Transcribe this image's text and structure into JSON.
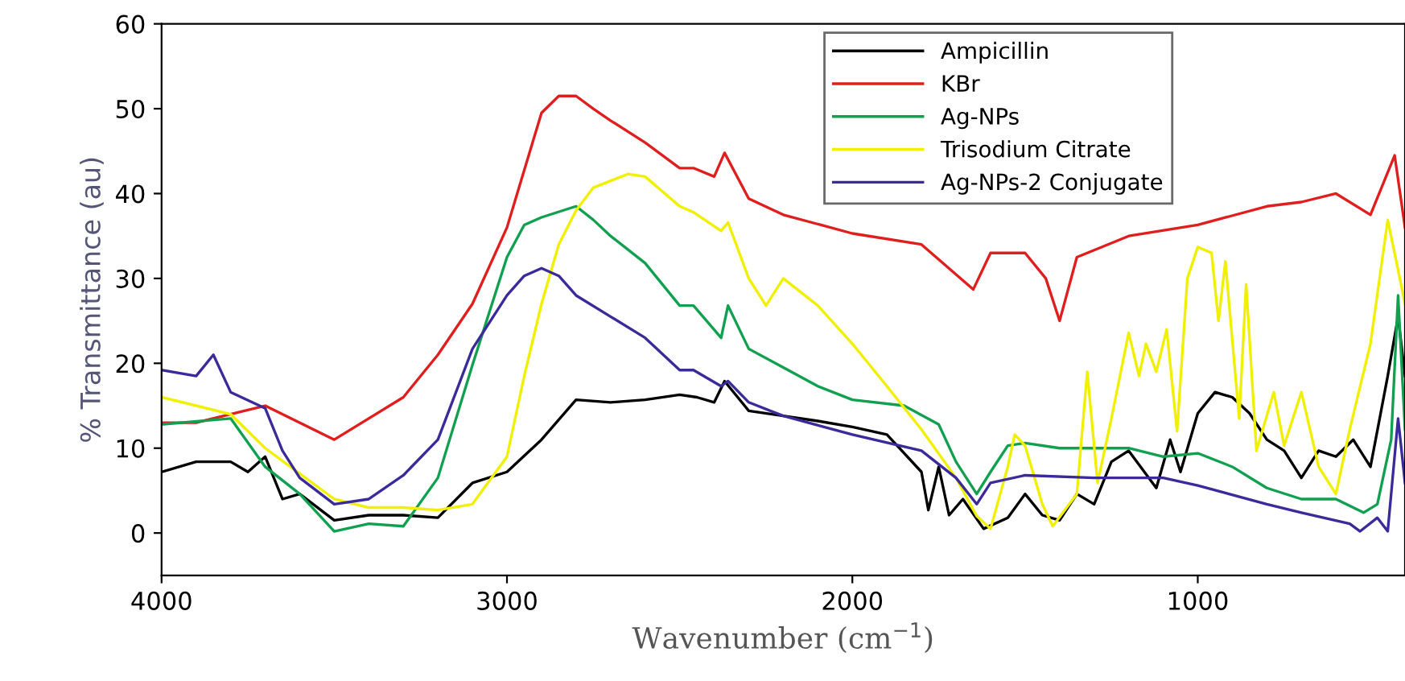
{
  "chart_data": {
    "type": "line",
    "xlabel": "Wavenumber (cm$^{−1}$)",
    "ylabel": "% Transmittance (au)",
    "xlim": [
      4000,
      400
    ],
    "ylim": [
      -5,
      60
    ],
    "xticks": [
      4000,
      3000,
      2000,
      1000
    ],
    "yticks": [
      0,
      10,
      20,
      30,
      40,
      50,
      60
    ],
    "grid": false,
    "legend": "top right",
    "marker": "none",
    "line_style": "solid",
    "series": [
      {
        "name": "Ampicillin",
        "color": "#000000",
        "x": [
          4000,
          3900,
          3800,
          3750,
          3700,
          3650,
          3600,
          3500,
          3400,
          3300,
          3200,
          3100,
          3000,
          2900,
          2800,
          2700,
          2600,
          2500,
          2450,
          2400,
          2370,
          2300,
          2200,
          2100,
          2000,
          1900,
          1800,
          1780,
          1750,
          1720,
          1680,
          1620,
          1550,
          1500,
          1450,
          1400,
          1350,
          1300,
          1250,
          1200,
          1120,
          1080,
          1050,
          1000,
          950,
          900,
          850,
          800,
          750,
          700,
          650,
          600,
          550,
          500,
          450,
          420,
          400
        ],
        "values": [
          7.2,
          8.4,
          8.4,
          7.2,
          9,
          4,
          4.6,
          1.5,
          2.1,
          2.1,
          1.8,
          5.9,
          7.2,
          11,
          15.7,
          15.4,
          15.7,
          16.3,
          16,
          15.4,
          17.9,
          14.4,
          13.8,
          13.2,
          12.5,
          11.6,
          7.2,
          2.7,
          7.8,
          2.1,
          4,
          0.5,
          1.8,
          4.6,
          2.1,
          1.5,
          4.6,
          3.4,
          8.4,
          9.7,
          5.3,
          11,
          7.2,
          14.1,
          16.6,
          16,
          14.1,
          11,
          9.7,
          6.5,
          9.7,
          9,
          11,
          7.8,
          18.5,
          25.5,
          18.5
        ]
      },
      {
        "name": "KBr",
        "color": "#e01e1e",
        "x": [
          4000,
          3900,
          3700,
          3500,
          3300,
          3200,
          3100,
          3000,
          2900,
          2850,
          2800,
          2750,
          2700,
          2600,
          2500,
          2460,
          2400,
          2370,
          2300,
          2200,
          2000,
          1800,
          1650,
          1600,
          1500,
          1440,
          1400,
          1350,
          1200,
          1000,
          800,
          700,
          600,
          500,
          430,
          400
        ],
        "values": [
          13,
          13,
          15,
          11,
          16,
          21,
          27,
          36,
          49.5,
          51.5,
          51.5,
          50,
          48.6,
          46,
          43,
          43,
          42,
          44.8,
          39.4,
          37.5,
          35.3,
          34,
          28.7,
          33,
          33,
          30,
          25,
          32.5,
          35,
          36.3,
          38.5,
          39,
          40,
          37.5,
          44.5,
          36
        ]
      },
      {
        "name": "Ag-NPs",
        "color": "#10a050",
        "x": [
          4000,
          3800,
          3700,
          3600,
          3500,
          3400,
          3300,
          3200,
          3100,
          3000,
          2950,
          2900,
          2800,
          2750,
          2700,
          2600,
          2500,
          2460,
          2380,
          2360,
          2300,
          2200,
          2100,
          2000,
          1850,
          1750,
          1700,
          1640,
          1600,
          1550,
          1500,
          1400,
          1200,
          1100,
          1000,
          900,
          800,
          700,
          600,
          520,
          480,
          440,
          420,
          400
        ],
        "values": [
          12.8,
          13.5,
          7.8,
          4.6,
          0.2,
          1.1,
          0.8,
          6.5,
          19.8,
          32.5,
          36.3,
          37.2,
          38.5,
          36.9,
          35,
          31.8,
          26.8,
          26.8,
          23,
          26.8,
          21.7,
          19.5,
          17.3,
          15.7,
          15,
          12.8,
          8.4,
          4.6,
          7.2,
          10.3,
          10.6,
          10,
          10,
          9,
          9.4,
          7.8,
          5.3,
          4,
          4,
          2.4,
          3.4,
          11,
          28,
          12.2
        ]
      },
      {
        "name": "Trisodium Citrate",
        "color": "#f0f000",
        "x": [
          4000,
          3800,
          3700,
          3600,
          3500,
          3400,
          3300,
          3200,
          3100,
          3000,
          2950,
          2900,
          2850,
          2800,
          2750,
          2650,
          2600,
          2500,
          2460,
          2380,
          2360,
          2300,
          2250,
          2200,
          2100,
          2000,
          1900,
          1800,
          1700,
          1640,
          1600,
          1550,
          1530,
          1500,
          1450,
          1420,
          1350,
          1320,
          1290,
          1250,
          1200,
          1170,
          1150,
          1120,
          1090,
          1060,
          1030,
          1000,
          960,
          940,
          920,
          880,
          860,
          830,
          780,
          750,
          700,
          650,
          600,
          560,
          500,
          450,
          420,
          400
        ],
        "values": [
          16,
          14,
          10,
          7,
          4,
          3,
          3,
          2.7,
          3.4,
          9,
          18.5,
          27,
          34,
          38,
          40.7,
          42.3,
          42,
          38.5,
          37.8,
          35.6,
          36.6,
          30,
          26.8,
          30,
          26.8,
          22.3,
          17.3,
          12.2,
          6.5,
          2,
          0.5,
          7.8,
          11.6,
          10.3,
          3.4,
          0.8,
          4.6,
          19,
          5.9,
          13.5,
          23.6,
          18.5,
          22.3,
          19,
          24,
          12,
          30,
          33.7,
          33,
          25,
          32,
          13.5,
          29.3,
          9.7,
          16.6,
          10.3,
          16.6,
          7.8,
          4.6,
          12.2,
          22.3,
          36.9,
          31,
          27
        ]
      },
      {
        "name": "Ag-NPs-2 Conjugate",
        "color": "#3a2a9a",
        "x": [
          4000,
          3900,
          3850,
          3800,
          3700,
          3650,
          3600,
          3500,
          3400,
          3300,
          3200,
          3100,
          3000,
          2950,
          2900,
          2850,
          2800,
          2700,
          2600,
          2500,
          2460,
          2380,
          2360,
          2300,
          2200,
          2000,
          1800,
          1700,
          1640,
          1600,
          1500,
          1300,
          1100,
          1000,
          800,
          700,
          560,
          530,
          480,
          450,
          420,
          400
        ],
        "values": [
          19.2,
          18.5,
          21,
          16.6,
          14.7,
          9.7,
          6.5,
          3.4,
          4,
          6.8,
          11,
          21.7,
          28,
          30.3,
          31.2,
          30.3,
          28,
          25.5,
          23,
          19.2,
          19.2,
          17.3,
          17.9,
          15.4,
          13.8,
          11.6,
          9.7,
          6.5,
          3.4,
          5.9,
          6.8,
          6.5,
          6.5,
          5.6,
          3.4,
          2.4,
          1.1,
          0.2,
          1.8,
          0.2,
          13.5,
          5.9
        ]
      }
    ]
  }
}
